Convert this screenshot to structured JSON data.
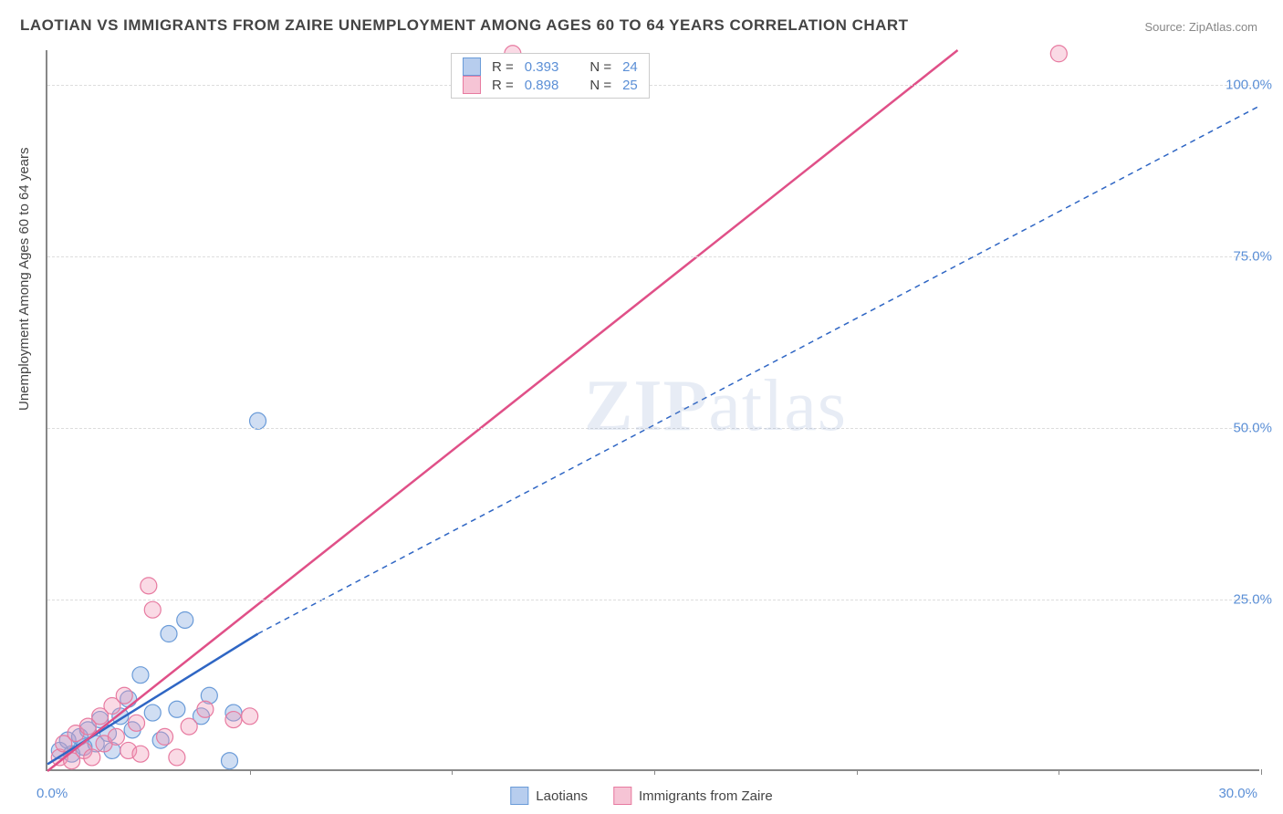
{
  "title": "LAOTIAN VS IMMIGRANTS FROM ZAIRE UNEMPLOYMENT AMONG AGES 60 TO 64 YEARS CORRELATION CHART",
  "source": "Source: ZipAtlas.com",
  "ylabel": "Unemployment Among Ages 60 to 64 years",
  "watermark_zip": "ZIP",
  "watermark_atlas": "atlas",
  "chart": {
    "type": "scatter",
    "background_color": "#ffffff",
    "grid_color": "#dddddd",
    "axis_color": "#888888",
    "xlim": [
      0,
      30
    ],
    "ylim": [
      0,
      105
    ],
    "xtick_origin": "0.0%",
    "xtick_end": "30.0%",
    "xtick_marks": [
      5,
      10,
      15,
      20,
      25,
      30
    ],
    "yticks": [
      {
        "v": 25,
        "label": "25.0%"
      },
      {
        "v": 50,
        "label": "50.0%"
      },
      {
        "v": 75,
        "label": "75.0%"
      },
      {
        "v": 100,
        "label": "100.0%"
      }
    ],
    "series": [
      {
        "name": "Laotians",
        "color_fill": "rgba(120,160,220,0.35)",
        "color_stroke": "#6a9bd8",
        "swatch_fill": "#b7cdee",
        "swatch_border": "#6a9bd8",
        "marker_r": 9,
        "R": "0.393",
        "N": "24",
        "trend": {
          "x1": 0,
          "y1": 1,
          "x2": 5.2,
          "y2": 20,
          "color": "#2f66c4",
          "width": 2.5,
          "dash": ""
        },
        "trend_ext": {
          "x1": 5.2,
          "y1": 20,
          "x2": 30,
          "y2": 97,
          "color": "#2f66c4",
          "width": 1.5,
          "dash": "6,5"
        },
        "points": [
          {
            "x": 0.3,
            "y": 3.0
          },
          {
            "x": 0.5,
            "y": 4.5
          },
          {
            "x": 0.6,
            "y": 2.5
          },
          {
            "x": 0.8,
            "y": 5.0
          },
          {
            "x": 0.9,
            "y": 3.5
          },
          {
            "x": 1.0,
            "y": 6.0
          },
          {
            "x": 1.2,
            "y": 4.0
          },
          {
            "x": 1.3,
            "y": 7.5
          },
          {
            "x": 1.5,
            "y": 5.5
          },
          {
            "x": 1.6,
            "y": 3.0
          },
          {
            "x": 1.8,
            "y": 8.0
          },
          {
            "x": 2.0,
            "y": 10.5
          },
          {
            "x": 2.1,
            "y": 6.0
          },
          {
            "x": 2.3,
            "y": 14.0
          },
          {
            "x": 2.6,
            "y": 8.5
          },
          {
            "x": 2.8,
            "y": 4.5
          },
          {
            "x": 3.0,
            "y": 20.0
          },
          {
            "x": 3.2,
            "y": 9.0
          },
          {
            "x": 3.4,
            "y": 22.0
          },
          {
            "x": 3.8,
            "y": 8.0
          },
          {
            "x": 4.0,
            "y": 11.0
          },
          {
            "x": 4.5,
            "y": 1.5
          },
          {
            "x": 4.6,
            "y": 8.5
          },
          {
            "x": 5.2,
            "y": 51.0
          }
        ]
      },
      {
        "name": "Immigrants from Zaire",
        "color_fill": "rgba(240,150,180,0.35)",
        "color_stroke": "#e77aa0",
        "swatch_fill": "#f6c4d5",
        "swatch_border": "#e77aa0",
        "marker_r": 9,
        "R": "0.898",
        "N": "25",
        "trend": {
          "x1": 0,
          "y1": 0,
          "x2": 22.5,
          "y2": 105,
          "color": "#e05088",
          "width": 2.5,
          "dash": ""
        },
        "points": [
          {
            "x": 0.3,
            "y": 2.0
          },
          {
            "x": 0.4,
            "y": 4.0
          },
          {
            "x": 0.6,
            "y": 1.5
          },
          {
            "x": 0.7,
            "y": 5.5
          },
          {
            "x": 0.9,
            "y": 3.0
          },
          {
            "x": 1.0,
            "y": 6.5
          },
          {
            "x": 1.1,
            "y": 2.0
          },
          {
            "x": 1.3,
            "y": 8.0
          },
          {
            "x": 1.4,
            "y": 4.0
          },
          {
            "x": 1.6,
            "y": 9.5
          },
          {
            "x": 1.7,
            "y": 5.0
          },
          {
            "x": 1.9,
            "y": 11.0
          },
          {
            "x": 2.0,
            "y": 3.0
          },
          {
            "x": 2.2,
            "y": 7.0
          },
          {
            "x": 2.3,
            "y": 2.5
          },
          {
            "x": 2.5,
            "y": 27.0
          },
          {
            "x": 2.6,
            "y": 23.5
          },
          {
            "x": 2.9,
            "y": 5.0
          },
          {
            "x": 3.2,
            "y": 2.0
          },
          {
            "x": 3.5,
            "y": 6.5
          },
          {
            "x": 3.9,
            "y": 9.0
          },
          {
            "x": 4.6,
            "y": 7.5
          },
          {
            "x": 5.0,
            "y": 8.0
          },
          {
            "x": 11.5,
            "y": 104.5
          },
          {
            "x": 25.0,
            "y": 104.5
          }
        ]
      }
    ]
  },
  "legend_stats_labels": {
    "R": "R =",
    "N": "N ="
  }
}
